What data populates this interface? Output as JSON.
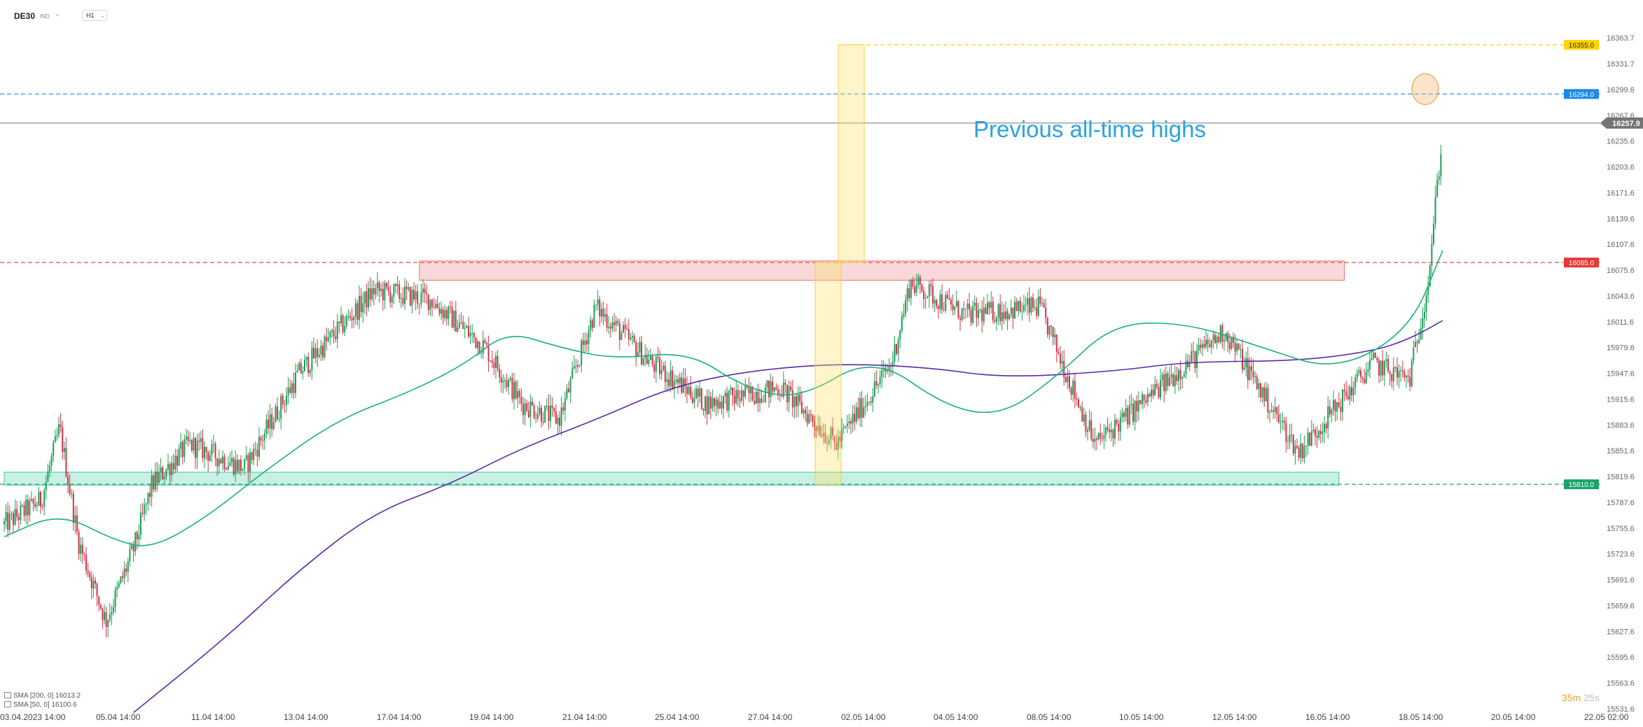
{
  "header": {
    "symbol": "DE30",
    "badge": "IND",
    "timeframe": "H1"
  },
  "indicators": [
    {
      "label": "SMA [200, 0]",
      "value": "16013.2",
      "color": "#5b2aa6"
    },
    {
      "label": "SMA [50, 0]",
      "value": "16100.6",
      "color": "#19b17c"
    }
  ],
  "timer": {
    "minutes": "35m",
    "seconds": "25s"
  },
  "chart_data": {
    "type": "candlestick",
    "timeframe": "H1",
    "ylim": [
      15531.6,
      16363.7
    ],
    "y_ticks": [
      "16363.7",
      "16331.7",
      "16299.6",
      "16267.6",
      "16235.6",
      "16203.6",
      "16171.6",
      "16139.6",
      "16107.6",
      "16075.6",
      "16043.6",
      "16011.6",
      "15979.6",
      "15947.6",
      "15915.6",
      "15883.6",
      "15851.6",
      "15819.6",
      "15787.6",
      "15755.6",
      "15723.6",
      "15691.6",
      "15659.6",
      "15627.6",
      "15595.6",
      "15563.6",
      "15531.6"
    ],
    "x_ticks": [
      "03.04.2023  14:00",
      "05.04  14:00",
      "11.04  14:00",
      "13.04  14:00",
      "17.04  14:00",
      "19.04  14:00",
      "21.04  14:00",
      "25.04  14:00",
      "27.04  14:00",
      "02.05  14:00",
      "04.05  14:00",
      "08.05  14:00",
      "10.05  14:00",
      "12.05  14:00",
      "16.05  14:00",
      "18.05  14:00",
      "20.05  14:00",
      "22.05  02:00"
    ],
    "price_levels": [
      {
        "value": 16355.0,
        "label": "16355.0",
        "color": "#ffd400",
        "style": "dashed"
      },
      {
        "value": 16294.0,
        "label": "16294.0",
        "color": "#1e88e5",
        "style": "dashed"
      },
      {
        "value": 16085.0,
        "label": "16085.0",
        "color": "#e53935",
        "style": "dashed"
      },
      {
        "value": 15810.0,
        "label": "15810.0",
        "color": "#1aa36a",
        "style": "dashed"
      }
    ],
    "last_price": {
      "value": 16257.9,
      "label": "16257.9",
      "color": "#757575"
    },
    "zones": [
      {
        "name": "resistance",
        "low": 16063,
        "high": 16087,
        "from_bar": 228,
        "to_bar": 736,
        "color": "#e57373"
      },
      {
        "name": "support",
        "low": 15809,
        "high": 15825,
        "from_bar": 0,
        "to_bar": 733,
        "color": "#3cc9a0"
      }
    ],
    "annotations": [
      {
        "text": "Previous all-time highs",
        "color": "#29a3df"
      }
    ],
    "series": [
      {
        "name": "SMA [200, 0]",
        "color": "#5b2aa6",
        "anchors": [
          [
            70,
            15527
          ],
          [
            120,
            15620
          ],
          [
            160,
            15705
          ],
          [
            200,
            15775
          ],
          [
            240,
            15809
          ],
          [
            280,
            15855
          ],
          [
            320,
            15890
          ],
          [
            360,
            15930
          ],
          [
            400,
            15950
          ],
          [
            450,
            15960
          ],
          [
            500,
            15955
          ],
          [
            540,
            15942
          ],
          [
            600,
            15950
          ],
          [
            640,
            15962
          ],
          [
            700,
            15963
          ],
          [
            740,
            15975
          ],
          [
            760,
            15990
          ],
          [
            778,
            16013
          ]
        ]
      },
      {
        "name": "SMA [50, 0]",
        "color": "#19b17c",
        "anchors": [
          [
            0,
            15745
          ],
          [
            30,
            15775
          ],
          [
            60,
            15740
          ],
          [
            80,
            15730
          ],
          [
            110,
            15770
          ],
          [
            140,
            15825
          ],
          [
            180,
            15890
          ],
          [
            220,
            15925
          ],
          [
            250,
            15960
          ],
          [
            272,
            16000
          ],
          [
            300,
            15980
          ],
          [
            330,
            15965
          ],
          [
            370,
            15975
          ],
          [
            400,
            15930
          ],
          [
            430,
            15915
          ],
          [
            470,
            15970
          ],
          [
            510,
            15905
          ],
          [
            540,
            15895
          ],
          [
            570,
            15945
          ],
          [
            600,
            16010
          ],
          [
            640,
            16010
          ],
          [
            680,
            15980
          ],
          [
            720,
            15950
          ],
          [
            760,
            16000
          ],
          [
            778,
            16100
          ]
        ]
      }
    ],
    "candle_count": 790
  }
}
